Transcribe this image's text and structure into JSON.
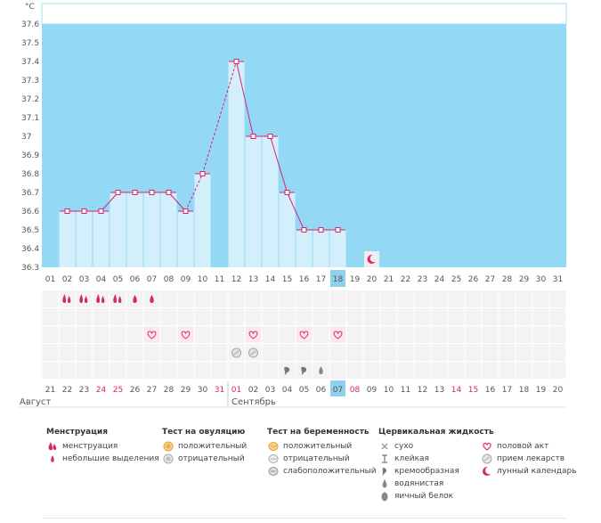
{
  "chart_data": {
    "type": "bar",
    "ylabel": "°C",
    "ylim": [
      36.3,
      37.6
    ],
    "y_ticks": [
      "37.6",
      "37.5",
      "37.4",
      "37.3",
      "37.2",
      "37.1",
      "37",
      "36.9",
      "36.8",
      "36.7",
      "36.6",
      "36.5",
      "36.4",
      "36.3"
    ],
    "x_top": [
      "01",
      "02",
      "03",
      "04",
      "05",
      "06",
      "07",
      "08",
      "09",
      "10",
      "11",
      "12",
      "13",
      "14",
      "15",
      "16",
      "17",
      "18",
      "19",
      "20",
      "21",
      "22",
      "23",
      "24",
      "25",
      "26",
      "27",
      "28",
      "29",
      "30",
      "31"
    ],
    "x_bottom": [
      "21",
      "22",
      "23",
      "24",
      "25",
      "26",
      "27",
      "28",
      "29",
      "30",
      "31",
      "01",
      "02",
      "03",
      "04",
      "05",
      "06",
      "07",
      "08",
      "09",
      "10",
      "11",
      "12",
      "13",
      "14",
      "15",
      "16",
      "17",
      "18",
      "19",
      "20"
    ],
    "red_bottom": [
      3,
      4,
      10,
      11,
      18,
      24,
      25
    ],
    "highlight_index": 17,
    "values": [
      null,
      36.6,
      36.6,
      36.6,
      36.7,
      36.7,
      36.7,
      36.7,
      36.6,
      36.8,
      null,
      37.4,
      37.0,
      37.0,
      36.7,
      36.5,
      36.5,
      36.5,
      null,
      null,
      null,
      null,
      null,
      null,
      null,
      null,
      null,
      null,
      null,
      null,
      null
    ],
    "dashed_segments": [
      [
        8,
        9
      ],
      [
        9,
        11
      ]
    ],
    "moon_index": 19,
    "legend": "none"
  },
  "calendar": {
    "months": [
      "Август",
      "Сентябрь"
    ],
    "rows": {
      "menstruation": [
        null,
        "heavy",
        "heavy",
        "heavy",
        "heavy",
        "light",
        "light",
        null,
        null,
        null,
        null,
        null,
        null,
        null,
        null,
        null,
        null,
        null,
        null,
        null,
        null,
        null,
        null,
        null,
        null,
        null,
        null,
        null,
        null,
        null,
        null
      ],
      "intercourse": [
        6,
        8,
        12,
        15,
        17
      ],
      "pregnancy_test": [
        11,
        12
      ],
      "cervical": {
        "14": "creamy",
        "15": "creamy",
        "16": "watery"
      }
    }
  },
  "legend": {
    "columns": [
      {
        "title": "Менструация",
        "items": [
          {
            "icon": "menstruation-heavy-icon",
            "label": "менструация"
          },
          {
            "icon": "menstruation-light-icon",
            "label": "небольшие выделения"
          }
        ]
      },
      {
        "title": "Тест на овуляцию",
        "items": [
          {
            "icon": "ovulation-positive-icon",
            "label": "положительный"
          },
          {
            "icon": "ovulation-negative-icon",
            "label": "отрицательный"
          }
        ]
      },
      {
        "title": "Тест на беременность",
        "items": [
          {
            "icon": "pregnancy-positive-icon",
            "label": "положительный"
          },
          {
            "icon": "pregnancy-negative-icon",
            "label": "отрицательный"
          },
          {
            "icon": "pregnancy-weak-icon",
            "label": "слабоположительный"
          }
        ]
      },
      {
        "title": "Цервикальная жидкость",
        "items": [
          {
            "icon": "dry-icon",
            "label": "сухо"
          },
          {
            "icon": "sticky-icon",
            "label": "клейкая"
          },
          {
            "icon": "creamy-icon",
            "label": "кремообразная"
          },
          {
            "icon": "watery-icon",
            "label": "водянистая"
          },
          {
            "icon": "egg-white-icon",
            "label": "яичный белок"
          }
        ]
      },
      {
        "title": "",
        "items": [
          {
            "icon": "heart-icon",
            "label": "половой акт"
          },
          {
            "icon": "pill-icon",
            "label": "прием лекарств"
          },
          {
            "icon": "moon-icon",
            "label": "лунный календарь"
          }
        ]
      }
    ],
    "colors": {
      "accent": "#d6246e",
      "sky": "#93d8f4",
      "bar": "#d4effc",
      "highlight": "#8fd0ee"
    }
  }
}
